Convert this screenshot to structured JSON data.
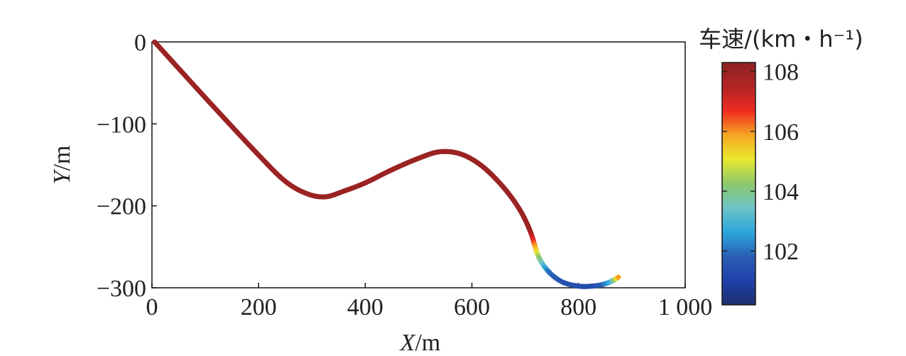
{
  "chart_data": {
    "type": "line",
    "title": "",
    "xlabel_var": "X",
    "xlabel_unit": "/m",
    "ylabel_var": "Y",
    "ylabel_unit": "/m",
    "xlim": [
      0,
      1000
    ],
    "ylim": [
      -300,
      0
    ],
    "x_ticks": [
      0,
      200,
      400,
      600,
      800,
      1000
    ],
    "x_tick_labels": [
      "0",
      "200",
      "400",
      "600",
      "800",
      "1 000"
    ],
    "y_ticks": [
      0,
      -100,
      -200,
      -300
    ],
    "y_tick_labels": [
      "0",
      "−100",
      "−200",
      "−300"
    ],
    "grid": false,
    "colorbar": {
      "title": "车速/(km・h⁻¹)",
      "range": [
        100.2,
        108.3
      ],
      "ticks": [
        102,
        104,
        106,
        108
      ],
      "tick_labels": [
        "102",
        "104",
        "106",
        "108"
      ],
      "colormap": [
        "#1d2f6b",
        "#1e40a8",
        "#2a5fb5",
        "#2ba6dc",
        "#6fc3c8",
        "#8cc96b",
        "#e8e82e",
        "#f6a623",
        "#ee2b21",
        "#b22424",
        "#8e2222"
      ]
    },
    "series": [
      {
        "x": [
          5,
          100,
          200,
          250,
          290,
          325,
          360,
          400,
          450,
          500,
          540,
          580,
          620,
          660,
          690,
          710,
          725,
          745,
          770,
          800,
          825,
          845,
          862,
          875
        ],
        "y": [
          0,
          -68,
          -138,
          -170,
          -185,
          -189,
          -182,
          -172,
          -156,
          -142,
          -134,
          -137,
          -152,
          -178,
          -205,
          -232,
          -262,
          -281,
          -293,
          -298,
          -298,
          -296,
          -292,
          -287
        ],
        "speed": [
          108,
          108,
          108,
          108,
          108,
          108,
          108,
          108,
          108,
          108,
          108,
          108,
          108,
          108,
          108,
          108,
          104.5,
          102,
          101.5,
          101.4,
          101.3,
          101.8,
          103,
          106
        ]
      }
    ]
  }
}
